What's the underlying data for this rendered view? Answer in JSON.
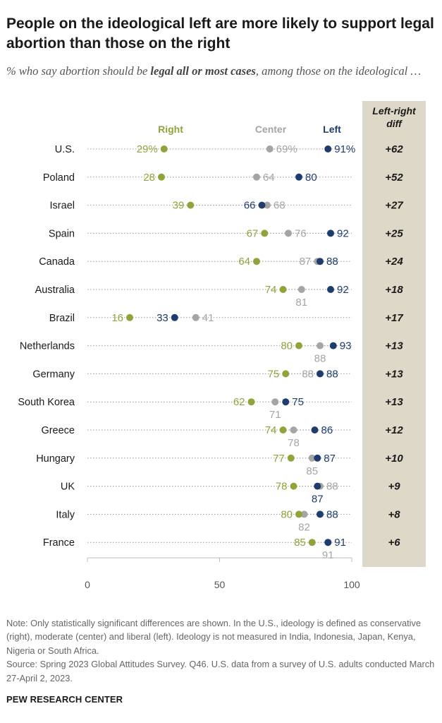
{
  "title": "People on the ideological left are more likely to support legal abortion than those on the right",
  "subtitle": {
    "before": "% who say abortion should be ",
    "emphasis": "legal all or most cases",
    "after": ", among those on the ideological …"
  },
  "colors": {
    "right": "#8fa53b",
    "center": "#a5a5a5",
    "left": "#1f3c6e",
    "diff_panel": "#ddd8c7",
    "dots_line": "#9a9a9a"
  },
  "chart_data": {
    "type": "scatter",
    "series_names": {
      "right": "Right",
      "center": "Center",
      "left": "Left"
    },
    "diff_header": [
      "Left-right",
      "diff"
    ],
    "xlim": [
      0,
      100
    ],
    "xticks": [
      0,
      50,
      100
    ],
    "rows": [
      {
        "country": "U.S.",
        "right": 29,
        "center": 69,
        "left": 91,
        "right_label": "29%",
        "center_label": "69%",
        "left_label": "91%",
        "diff": "+62"
      },
      {
        "country": "Poland",
        "right": 28,
        "center": 64,
        "left": 80,
        "right_label": "28",
        "center_label": "64",
        "left_label": "80",
        "diff": "+52"
      },
      {
        "country": "Israel",
        "right": 39,
        "center": 68,
        "left": 66,
        "right_label": "39",
        "center_label": "68",
        "left_label": "66",
        "diff": "+27"
      },
      {
        "country": "Spain",
        "right": 67,
        "center": 76,
        "left": 92,
        "right_label": "67",
        "center_label": "76",
        "left_label": "92",
        "diff": "+25"
      },
      {
        "country": "Canada",
        "right": 64,
        "center": 87,
        "left": 88,
        "right_label": "64",
        "center_label": "87",
        "left_label": "88",
        "diff": "+24"
      },
      {
        "country": "Australia",
        "right": 74,
        "center": 81,
        "left": 92,
        "right_label": "74",
        "center_label": "81",
        "left_label": "92",
        "diff": "+18"
      },
      {
        "country": "Brazil",
        "right": 16,
        "center": 41,
        "left": 33,
        "right_label": "16",
        "center_label": "41",
        "left_label": "33",
        "diff": "+17"
      },
      {
        "country": "Netherlands",
        "right": 80,
        "center": 88,
        "left": 93,
        "right_label": "80",
        "center_label": "88",
        "left_label": "93",
        "diff": "+13"
      },
      {
        "country": "Germany",
        "right": 75,
        "center": 88,
        "left": 88,
        "right_label": "75",
        "center_label": "88",
        "left_label": "88",
        "diff": "+13"
      },
      {
        "country": "South Korea",
        "right": 62,
        "center": 71,
        "left": 75,
        "right_label": "62",
        "center_label": "71",
        "left_label": "75",
        "diff": "+13"
      },
      {
        "country": "Greece",
        "right": 74,
        "center": 78,
        "left": 86,
        "right_label": "74",
        "center_label": "78",
        "left_label": "86",
        "diff": "+12"
      },
      {
        "country": "Hungary",
        "right": 77,
        "center": 85,
        "left": 87,
        "right_label": "77",
        "center_label": "85",
        "left_label": "87",
        "diff": "+10"
      },
      {
        "country": "UK",
        "right": 78,
        "center": 88,
        "left": 87,
        "right_label": "78",
        "center_label": "88",
        "left_label": "87",
        "diff": "+9"
      },
      {
        "country": "Italy",
        "right": 80,
        "center": 82,
        "left": 88,
        "right_label": "80",
        "center_label": "82",
        "left_label": "88",
        "diff": "+8"
      },
      {
        "country": "France",
        "right": 85,
        "center": 91,
        "left": 91,
        "right_label": "85",
        "center_label": "91",
        "left_label": "91",
        "diff": "+6"
      }
    ]
  },
  "note": "Note: Only statistically significant differences are shown. In the U.S., ideology is defined as conservative (right), moderate (center) and liberal (left). Ideology is not measured in India, Indonesia, Japan, Kenya, Nigeria or South Africa.",
  "source": "Source: Spring 2023 Global Attitudes Survey. Q46. U.S. data from a survey of U.S. adults conducted March 27-April 2, 2023.",
  "brand": "PEW RESEARCH CENTER"
}
